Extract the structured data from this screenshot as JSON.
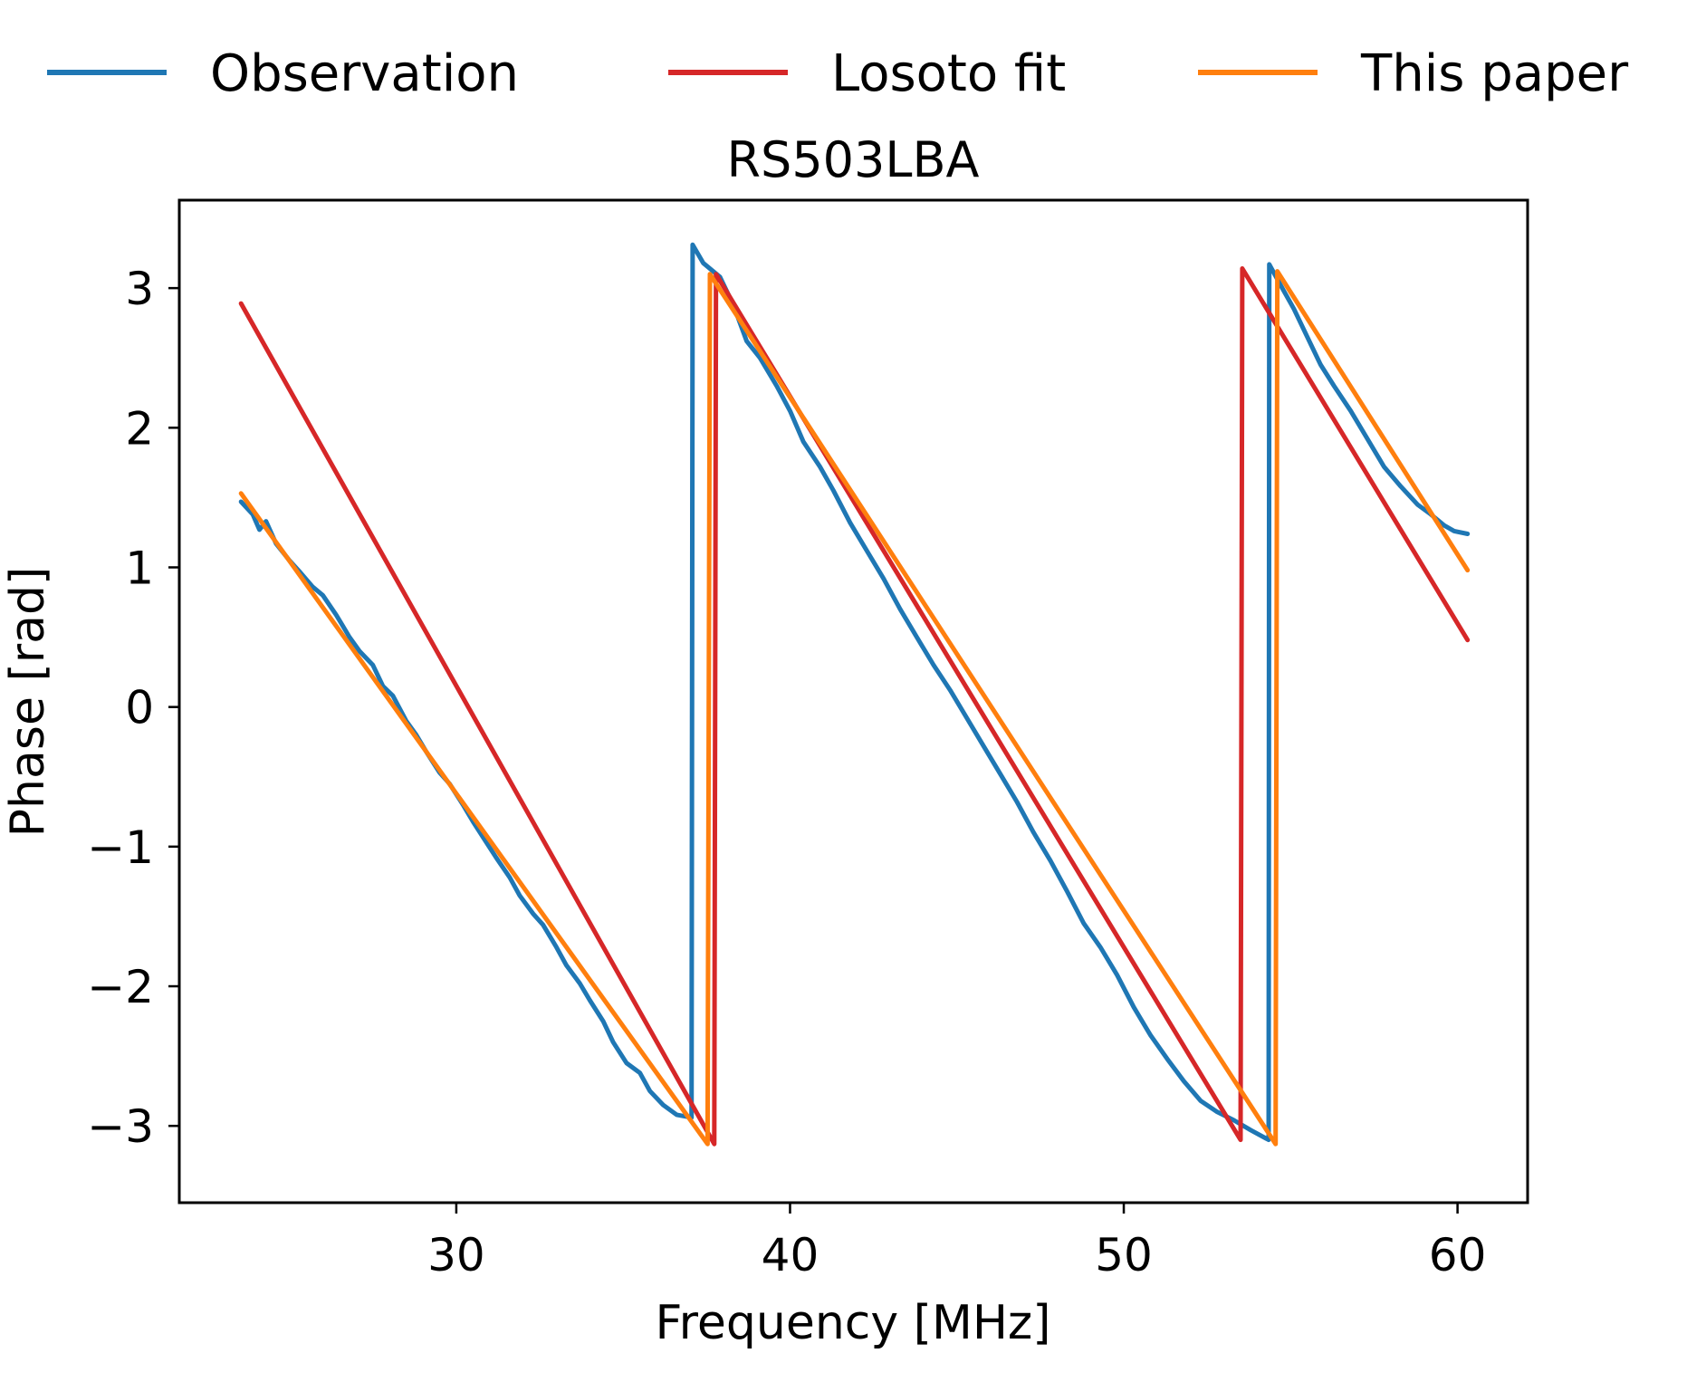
{
  "chart_data": {
    "type": "line",
    "title": "RS503LBA",
    "xlabel": "Frequency [MHz]",
    "ylabel": "Phase [rad]",
    "xlim": [
      21.7,
      62.1
    ],
    "ylim": [
      -3.55,
      3.63
    ],
    "xticks": [
      30,
      40,
      50,
      60
    ],
    "xtick_labels": [
      "30",
      "40",
      "50",
      "60"
    ],
    "yticks": [
      -3,
      -2,
      -1,
      0,
      1,
      2,
      3
    ],
    "ytick_labels": [
      "−3",
      "−2",
      "−1",
      "0",
      "1",
      "2",
      "3"
    ],
    "grid": false,
    "legend_position": "top, outside plot, horizontal",
    "series": [
      {
        "name": "Observation",
        "color": "#1f77b4",
        "points": [
          [
            23.55,
            1.47
          ],
          [
            23.9,
            1.38
          ],
          [
            24.1,
            1.27
          ],
          [
            24.3,
            1.33
          ],
          [
            24.6,
            1.17
          ],
          [
            25.0,
            1.05
          ],
          [
            25.3,
            0.97
          ],
          [
            25.7,
            0.86
          ],
          [
            26.0,
            0.8
          ],
          [
            26.4,
            0.66
          ],
          [
            26.8,
            0.5
          ],
          [
            27.1,
            0.4
          ],
          [
            27.5,
            0.3
          ],
          [
            27.8,
            0.15
          ],
          [
            28.1,
            0.08
          ],
          [
            28.5,
            -0.1
          ],
          [
            28.8,
            -0.2
          ],
          [
            29.1,
            -0.32
          ],
          [
            29.5,
            -0.47
          ],
          [
            29.8,
            -0.55
          ],
          [
            30.2,
            -0.7
          ],
          [
            30.5,
            -0.82
          ],
          [
            30.9,
            -0.97
          ],
          [
            31.2,
            -1.08
          ],
          [
            31.6,
            -1.22
          ],
          [
            31.9,
            -1.35
          ],
          [
            32.3,
            -1.48
          ],
          [
            32.6,
            -1.56
          ],
          [
            33.0,
            -1.72
          ],
          [
            33.3,
            -1.85
          ],
          [
            33.7,
            -1.98
          ],
          [
            34.0,
            -2.1
          ],
          [
            34.4,
            -2.25
          ],
          [
            34.7,
            -2.4
          ],
          [
            35.1,
            -2.55
          ],
          [
            35.5,
            -2.62
          ],
          [
            35.8,
            -2.75
          ],
          [
            36.2,
            -2.85
          ],
          [
            36.6,
            -2.92
          ],
          [
            37.05,
            -2.94
          ],
          [
            37.08,
            3.31
          ],
          [
            37.4,
            3.18
          ],
          [
            37.9,
            3.08
          ],
          [
            38.3,
            2.88
          ],
          [
            38.7,
            2.62
          ],
          [
            39.1,
            2.5
          ],
          [
            39.6,
            2.3
          ],
          [
            40.0,
            2.12
          ],
          [
            40.4,
            1.9
          ],
          [
            40.9,
            1.72
          ],
          [
            41.3,
            1.55
          ],
          [
            41.8,
            1.32
          ],
          [
            42.3,
            1.12
          ],
          [
            42.8,
            0.92
          ],
          [
            43.3,
            0.7
          ],
          [
            43.8,
            0.5
          ],
          [
            44.3,
            0.3
          ],
          [
            44.8,
            0.12
          ],
          [
            45.3,
            -0.08
          ],
          [
            45.8,
            -0.28
          ],
          [
            46.3,
            -0.48
          ],
          [
            46.8,
            -0.68
          ],
          [
            47.3,
            -0.9
          ],
          [
            47.8,
            -1.1
          ],
          [
            48.3,
            -1.32
          ],
          [
            48.8,
            -1.55
          ],
          [
            49.3,
            -1.72
          ],
          [
            49.8,
            -1.92
          ],
          [
            50.3,
            -2.15
          ],
          [
            50.8,
            -2.35
          ],
          [
            51.3,
            -2.52
          ],
          [
            51.8,
            -2.68
          ],
          [
            52.3,
            -2.82
          ],
          [
            52.8,
            -2.9
          ],
          [
            53.3,
            -2.96
          ],
          [
            53.8,
            -3.03
          ],
          [
            54.34,
            -3.1
          ],
          [
            54.36,
            3.17
          ],
          [
            54.7,
            3.02
          ],
          [
            55.1,
            2.85
          ],
          [
            55.5,
            2.65
          ],
          [
            55.9,
            2.45
          ],
          [
            56.3,
            2.3
          ],
          [
            56.8,
            2.12
          ],
          [
            57.3,
            1.92
          ],
          [
            57.8,
            1.72
          ],
          [
            58.3,
            1.58
          ],
          [
            58.8,
            1.45
          ],
          [
            59.2,
            1.38
          ],
          [
            59.6,
            1.3
          ],
          [
            59.9,
            1.26
          ],
          [
            60.3,
            1.24
          ]
        ]
      },
      {
        "name": "Losoto fit",
        "color": "#d62728",
        "points": [
          [
            23.55,
            2.89
          ],
          [
            37.73,
            -3.13
          ],
          [
            37.78,
            3.1
          ],
          [
            53.5,
            -3.1
          ],
          [
            53.55,
            3.14
          ],
          [
            60.3,
            0.48
          ]
        ]
      },
      {
        "name": "This paper",
        "color": "#ff7f0e",
        "points": [
          [
            23.55,
            1.53
          ],
          [
            37.53,
            -3.13
          ],
          [
            37.6,
            3.1
          ],
          [
            54.55,
            -3.13
          ],
          [
            54.6,
            3.12
          ],
          [
            60.3,
            0.98
          ]
        ]
      }
    ]
  }
}
